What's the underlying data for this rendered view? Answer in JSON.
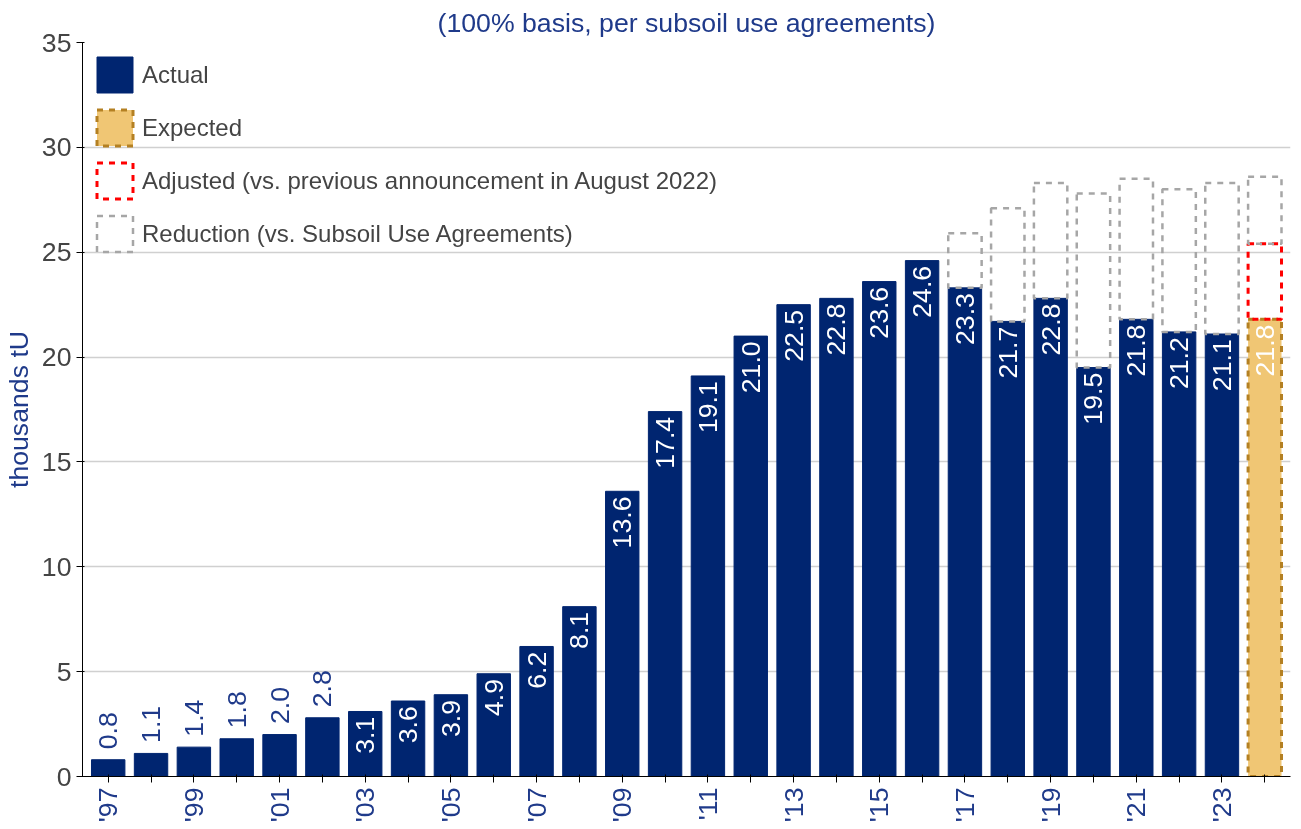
{
  "chart_data": {
    "type": "bar",
    "subtitle": "(100% basis, per subsoil use agreements)",
    "ylabel": "thousands tU",
    "categories": [
      "'97",
      null,
      "'99",
      null,
      "'01",
      null,
      "'03",
      null,
      "'05",
      null,
      "'07",
      null,
      "'09",
      null,
      "'11",
      null,
      "'13",
      null,
      "'15",
      null,
      "'17",
      null,
      "'19",
      null,
      "'21",
      null,
      "'23",
      null
    ],
    "stacked": true,
    "ylim": [
      0,
      35
    ],
    "yticks": [
      0,
      5,
      10,
      15,
      20,
      25,
      30,
      35
    ],
    "grid": "y",
    "legend": "top left",
    "series": [
      {
        "name": "Actual",
        "color": "#002570",
        "values": [
          0.8,
          1.1,
          1.4,
          1.8,
          2.0,
          2.8,
          3.1,
          3.6,
          3.9,
          4.9,
          6.2,
          8.1,
          13.6,
          17.4,
          19.1,
          21.0,
          22.5,
          22.8,
          23.6,
          24.6,
          23.3,
          21.7,
          22.8,
          19.5,
          21.8,
          21.2,
          21.1,
          null
        ],
        "value_labels": [
          "0.8",
          "1.1",
          "1.4",
          "1.8",
          "2.0",
          "2.8",
          "3.1",
          "3.6",
          "3.9",
          "4.9",
          "6.2",
          "8.1",
          "13.6",
          "17.4",
          "19.1",
          "21.0",
          "22.5",
          "22.8",
          "23.6",
          "24.6",
          "23.3",
          "21.7",
          "22.8",
          "19.5",
          "21.8",
          "21.2",
          "21.1",
          null
        ]
      },
      {
        "name": "Expected",
        "color": "#f0c674",
        "line_style": "dashed",
        "values": [
          null,
          null,
          null,
          null,
          null,
          null,
          null,
          null,
          null,
          null,
          null,
          null,
          null,
          null,
          null,
          null,
          null,
          null,
          null,
          null,
          null,
          null,
          null,
          null,
          null,
          null,
          null,
          21.8
        ],
        "value_labels": [
          null,
          null,
          null,
          null,
          null,
          null,
          null,
          null,
          null,
          null,
          null,
          null,
          null,
          null,
          null,
          null,
          null,
          null,
          null,
          null,
          null,
          null,
          null,
          null,
          null,
          null,
          null,
          "21.8"
        ]
      },
      {
        "name": "Adjusted (vs. previous announcement in August 2022)",
        "color": "#ff0000",
        "line_style": "dashed",
        "values": [
          null,
          null,
          null,
          null,
          null,
          null,
          null,
          null,
          null,
          null,
          null,
          null,
          null,
          null,
          null,
          null,
          null,
          null,
          null,
          null,
          null,
          null,
          null,
          null,
          null,
          null,
          null,
          3.6
        ]
      },
      {
        "name": "Reduction (vs. Subsoil Use Agreements)",
        "color": "#a6a6a6",
        "line_style": "dashed",
        "values": [
          null,
          null,
          null,
          null,
          null,
          null,
          null,
          null,
          null,
          null,
          null,
          null,
          null,
          null,
          null,
          null,
          null,
          null,
          null,
          null,
          2.6,
          5.4,
          5.5,
          8.3,
          6.7,
          6.8,
          7.2,
          3.2
        ]
      }
    ]
  }
}
